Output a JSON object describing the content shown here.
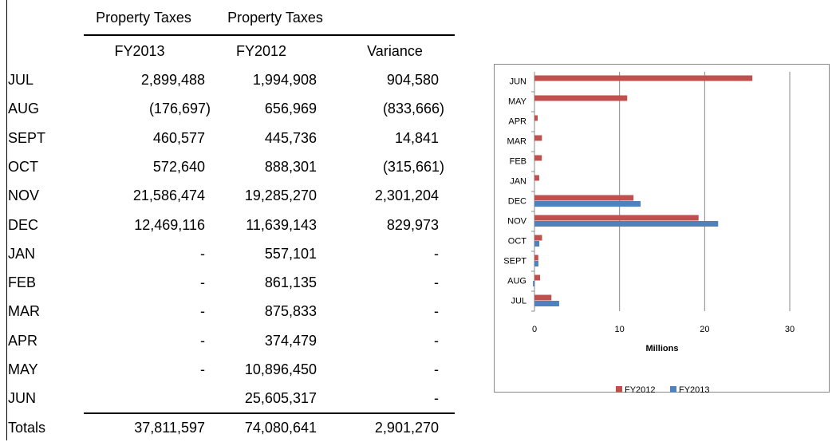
{
  "table": {
    "header_top": [
      "Property Taxes",
      "Property Taxes"
    ],
    "columns": [
      "FY2013",
      "FY2012",
      "Variance"
    ],
    "rows": [
      [
        "JUL",
        "2,899,488",
        "1,994,908",
        "904,580"
      ],
      [
        "AUG",
        "(176,697)",
        "656,969",
        "(833,666)"
      ],
      [
        "SEPT",
        "460,577",
        "445,736",
        "14,841"
      ],
      [
        "OCT",
        "572,640",
        "888,301",
        "(315,661)"
      ],
      [
        "NOV",
        "21,586,474",
        "19,285,270",
        "2,301,204"
      ],
      [
        "DEC",
        "12,469,116",
        "11,639,143",
        "829,973"
      ],
      [
        "JAN",
        "-",
        "557,101",
        "-"
      ],
      [
        "FEB",
        "-",
        "861,135",
        "-"
      ],
      [
        "MAR",
        "-",
        "875,833",
        "-"
      ],
      [
        "APR",
        "-",
        "374,479",
        "-"
      ],
      [
        "MAY",
        "-",
        "10,896,450",
        "-"
      ],
      [
        "JUN",
        null,
        "25,605,317",
        "-"
      ]
    ],
    "totals": [
      "Totals",
      "37,811,597",
      "74,080,641",
      "2,901,270"
    ]
  },
  "chart_data": {
    "type": "hbar",
    "categories": [
      "JUL",
      "AUG",
      "SEPT",
      "OCT",
      "NOV",
      "DEC",
      "JAN",
      "FEB",
      "MAR",
      "APR",
      "MAY",
      "JUN"
    ],
    "series": [
      {
        "name": "FY2012",
        "color": "#c0504d",
        "values": [
          1.994908,
          0.656969,
          0.445736,
          0.888301,
          19.28527,
          11.639143,
          0.557101,
          0.861135,
          0.875833,
          0.374479,
          10.89645,
          25.605317
        ]
      },
      {
        "name": "FY2013",
        "color": "#4f81bd",
        "values": [
          2.899488,
          -0.176697,
          0.460577,
          0.57264,
          21.586474,
          12.469116,
          null,
          null,
          null,
          null,
          null,
          null
        ]
      }
    ],
    "xlabel": "Millions",
    "xlim": [
      0,
      30
    ],
    "xticks": [
      0,
      10,
      20,
      30
    ],
    "grid": true,
    "legend": "bottom"
  }
}
